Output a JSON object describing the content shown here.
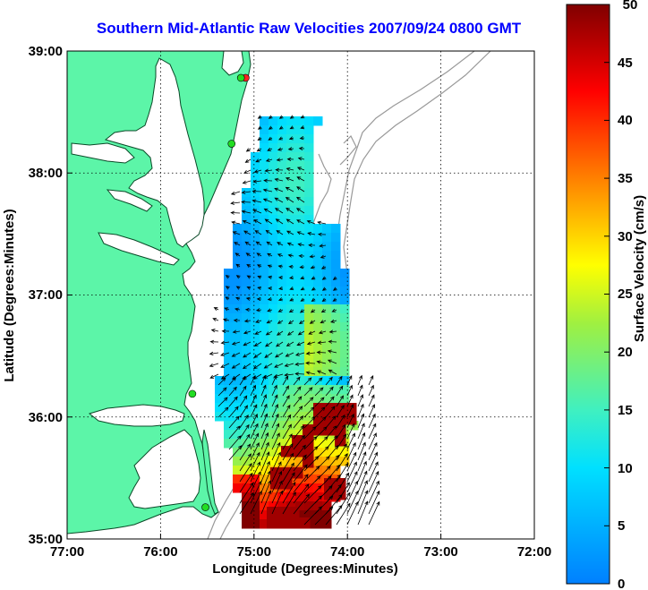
{
  "title": "Southern Mid-Atlantic Raw Velocities 2007/09/24 0800 GMT",
  "axes": {
    "xlabel": "Longitude (Degrees:Minutes)",
    "ylabel": "Latitude (Degrees:Minutes)",
    "xticks": [
      "77:00",
      "76:00",
      "75:00",
      "74:00",
      "73:00",
      "72:00"
    ],
    "yticks": [
      "39:00",
      "38:00",
      "37:00",
      "36:00",
      "35:00"
    ],
    "xlim": [
      -77,
      -72
    ],
    "ylim": [
      35,
      39
    ]
  },
  "colorbar": {
    "label": "Surface Velocity (cm/s)",
    "ticks": [
      "50",
      "45",
      "40",
      "35",
      "30",
      "25",
      "20",
      "15",
      "10",
      "5",
      "0"
    ],
    "range": [
      0,
      50
    ]
  },
  "colors": {
    "land": "#5cf5a8",
    "title": "#0000ff",
    "bathymetry": "#999999",
    "site": "#22dd22",
    "site_alt": "#ff2222"
  },
  "sites": [
    {
      "lon": -75.09,
      "lat": 38.78,
      "color": "site_alt"
    },
    {
      "lon": -75.14,
      "lat": 38.78,
      "color": "site"
    },
    {
      "lon": -75.24,
      "lat": 38.24,
      "color": "site"
    },
    {
      "lon": -75.66,
      "lat": 36.19,
      "color": "site"
    },
    {
      "lon": -75.52,
      "lat": 35.26,
      "color": "site"
    }
  ]
}
